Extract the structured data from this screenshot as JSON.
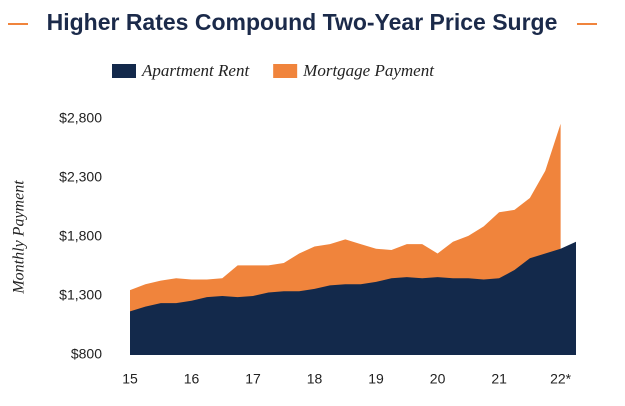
{
  "chart_data": {
    "type": "area",
    "title": "Higher Rates Compound Two-Year Price Surge",
    "y_label": "Monthly Payment",
    "categories": [
      "15",
      null,
      null,
      null,
      "16",
      null,
      null,
      null,
      "17",
      null,
      null,
      null,
      "18",
      null,
      null,
      null,
      "19",
      null,
      null,
      null,
      "20",
      null,
      null,
      null,
      "21",
      null,
      null,
      null,
      "22*",
      null
    ],
    "series": [
      {
        "name": "Mortgage Payment",
        "color": "#f0843c",
        "values": [
          1350,
          1400,
          1430,
          1450,
          1440,
          1440,
          1450,
          1560,
          1560,
          1560,
          1580,
          1660,
          1720,
          1740,
          1780,
          1740,
          1700,
          1690,
          1740,
          1740,
          1660,
          1760,
          1810,
          1890,
          2010,
          2030,
          2130,
          2360,
          2760,
          null
        ]
      },
      {
        "name": "Apartment Rent",
        "color": "#13294b",
        "values": [
          1170,
          1210,
          1240,
          1240,
          1260,
          1290,
          1300,
          1290,
          1300,
          1330,
          1340,
          1340,
          1360,
          1390,
          1400,
          1400,
          1420,
          1450,
          1460,
          1450,
          1460,
          1450,
          1450,
          1440,
          1450,
          1520,
          1620,
          1660,
          1700,
          1760
        ]
      }
    ],
    "ylim": [
      800,
      2800
    ],
    "yticks": [
      {
        "value": 800,
        "label": "$800"
      },
      {
        "value": 1300,
        "label": "$1,300"
      },
      {
        "value": 1800,
        "label": "$1,800"
      },
      {
        "value": 2300,
        "label": "$2,300"
      },
      {
        "value": 2800,
        "label": "$2,800"
      }
    ]
  }
}
